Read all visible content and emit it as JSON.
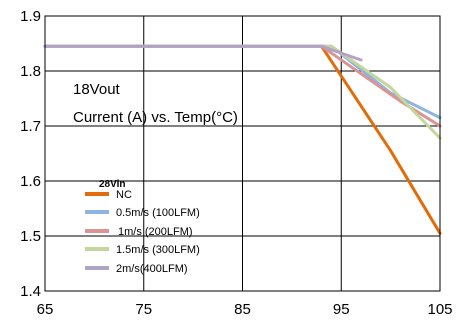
{
  "chart_data": {
    "type": "line",
    "title": "",
    "xlabel": "",
    "ylabel": "",
    "xlim": [
      65,
      105
    ],
    "ylim": [
      1.4,
      1.9
    ],
    "x_ticks": [
      65,
      75,
      85,
      95,
      105
    ],
    "y_ticks": [
      1.4,
      1.5,
      1.6,
      1.7,
      1.8,
      1.9
    ],
    "x_tick_labels": [
      "65",
      "75",
      "85",
      "95",
      "105"
    ],
    "y_tick_labels": [
      "1.4",
      "1.5",
      "1.6",
      "1.7",
      "1.8",
      "1.9"
    ],
    "grid": "horizontal",
    "annotations": [
      "18Vout",
      "Current (A) vs. Temp(°C)"
    ],
    "legend_title": "28Vin",
    "legend_position": "lower-left",
    "series": [
      {
        "name": "NC",
        "color": "#E36C0A",
        "x": [
          65,
          93,
          100,
          105
        ],
        "y": [
          1.845,
          1.845,
          1.655,
          1.505
        ]
      },
      {
        "name": "0.5m/s (100LFM)",
        "color": "#8EB4E3",
        "x": [
          65,
          94,
          100,
          105
        ],
        "y": [
          1.845,
          1.845,
          1.76,
          1.715
        ]
      },
      {
        "name": "1m/s (200LFM)",
        "color": "#D99594",
        "x": [
          65,
          93,
          101,
          105
        ],
        "y": [
          1.845,
          1.845,
          1.745,
          1.7
        ]
      },
      {
        "name": "1.5m/s (300LFM)",
        "color": "#C3D69B",
        "x": [
          65,
          94,
          100,
          105
        ],
        "y": [
          1.845,
          1.845,
          1.77,
          1.678
        ]
      },
      {
        "name": "2m/s(400LFM)",
        "color": "#B3A2C7",
        "x": [
          65,
          93,
          97
        ],
        "y": [
          1.845,
          1.845,
          1.82
        ]
      }
    ]
  }
}
